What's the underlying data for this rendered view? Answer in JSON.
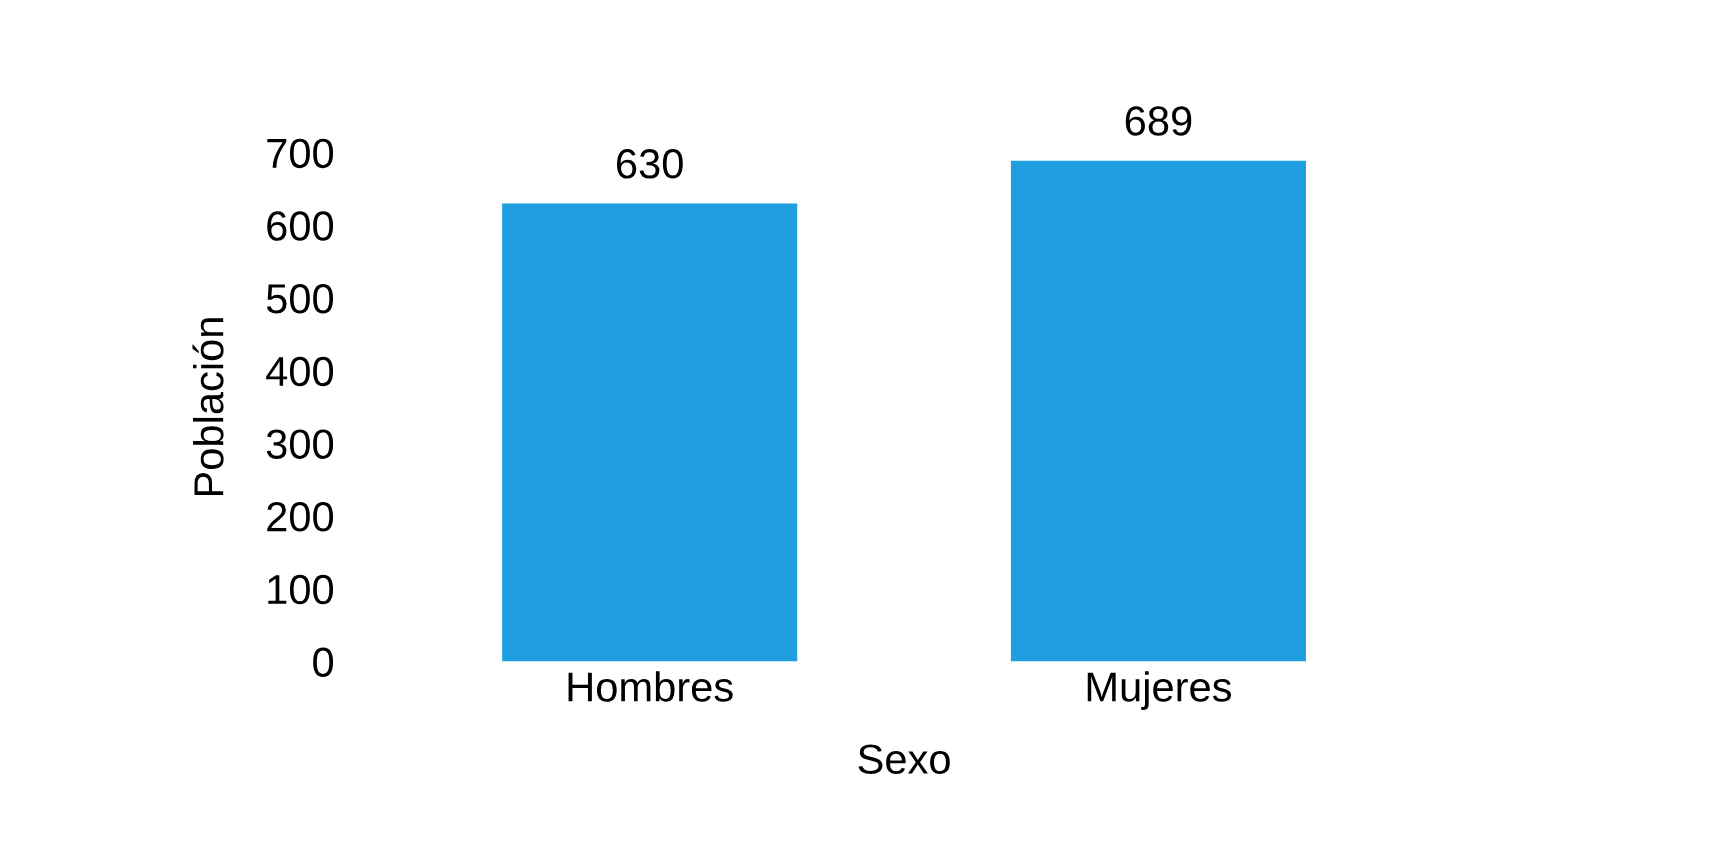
{
  "chart_data": {
    "type": "bar",
    "xlabel": "Sexo",
    "ylabel": "Población",
    "categories": [
      "Hombres",
      "Mujeres"
    ],
    "values": [
      630,
      689
    ],
    "color": "#1f9fe0",
    "ylim": [
      0,
      700
    ],
    "yticks": [
      0,
      100,
      200,
      300,
      400,
      500,
      600,
      700
    ],
    "data_labels": true,
    "grid": false,
    "legend": false
  }
}
